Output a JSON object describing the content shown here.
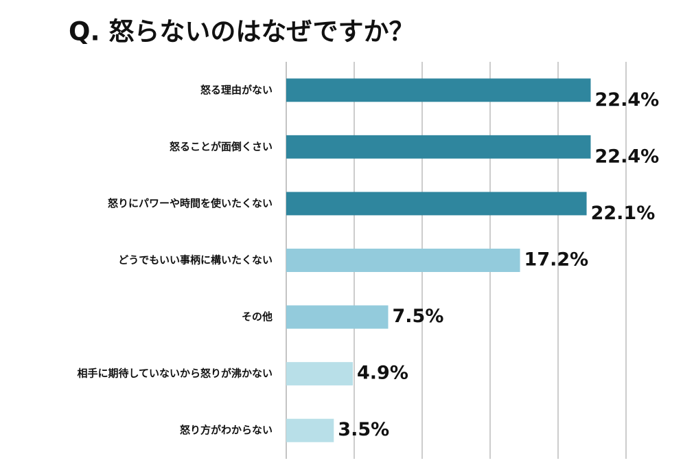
{
  "chart_data": {
    "type": "hbar",
    "title": "Q. 怒らないのはなぜですか？",
    "categories": [
      "怒る理由がない",
      "怒ることが面倒くさい",
      "怒りにパワーや時間を使いたくない",
      "どうでもいい事柄に構いたくない",
      "その他",
      "相手に期待していないから怒りが沸かない",
      "怒り方がわからない"
    ],
    "values": [
      22.4,
      22.4,
      22.1,
      17.2,
      7.5,
      4.9,
      3.5
    ],
    "value_labels": [
      "22.4%",
      "22.4%",
      "22.1%",
      "17.2%",
      "7.5%",
      "4.9%",
      "3.5%"
    ],
    "colors": [
      "#2f869e",
      "#2f869e",
      "#2f869e",
      "#93cbdc",
      "#93cbdc",
      "#b8dfe8",
      "#b8dfe8"
    ],
    "xlim": [
      0,
      25
    ],
    "xticks": [
      0,
      5,
      10,
      15,
      20,
      25
    ],
    "grid": true
  }
}
